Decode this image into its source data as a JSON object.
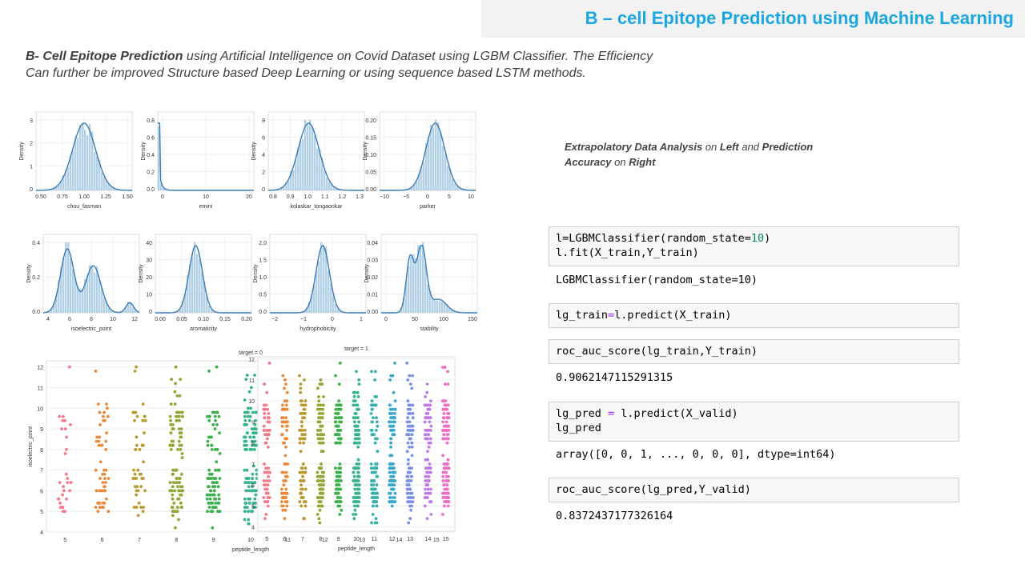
{
  "header": {
    "title": "B – cell Epitope Prediction using Machine Learning"
  },
  "intro": {
    "bold": "B- Cell Epitope Prediction",
    "rest": "  using Artificial Intelligence on Covid Dataset using LGBM Classifier. The Efficiency",
    "line2": "Can further be improved Structure based Deep Learning or using sequence based LSTM methods."
  },
  "note": {
    "b1": "Extrapolatory Data Analysis",
    "t1": " on ",
    "b2": "Left",
    "t2": " and ",
    "b3": "Prediction Accuracy",
    "t3": " on ",
    "b4": "Right"
  },
  "code": {
    "c1_a": "l",
    "c1_b": "=LGBMClassifier(random_state=",
    "c1_num": "10",
    "c1_c": ")",
    "c1_line2": "l.fit(X_train,Y_train)",
    "o1": "LGBMClassifier(random_state=10)",
    "c2_a": "lg_train",
    "c2_op": "=",
    "c2_b": "l.predict(X_train)",
    "c3": "roc_auc_score(lg_train,Y_train)",
    "o3": "0.9062147115291315",
    "c4_a": "lg_pred ",
    "c4_op": "=",
    "c4_b": " l.predict(X_valid)",
    "c4_line2": "lg_pred",
    "o4": "array([0, 0, 1, ..., 0, 0, 0], dtype=int64)",
    "c5": "roc_auc_score(lg_pred,Y_valid)",
    "o5": "0.8372437177326164"
  },
  "colors": {
    "kde": "#3b7bb5",
    "hist": "#9fc5e0"
  },
  "chart_data": [
    {
      "type": "area",
      "xlabel": "chou_fasman",
      "ylabel": "Density",
      "xticks": [
        "0.50",
        "0.75",
        "1.00",
        "1.25",
        "1.50"
      ],
      "yticks": [
        "0",
        "1",
        "2",
        "3"
      ],
      "shape": {
        "kind": "normal",
        "mu": 0.5,
        "s": 0.12
      }
    },
    {
      "type": "area",
      "xlabel": "emini",
      "ylabel": "Density",
      "xticks": [
        "0",
        "10",
        "20"
      ],
      "yticks": [
        "0.0",
        "0.2",
        "0.4",
        "0.6",
        "0.8"
      ],
      "shape": {
        "kind": "spike"
      }
    },
    {
      "type": "area",
      "xlabel": "kolaskar_tongaonkar",
      "ylabel": "Density",
      "xticks": [
        "0.8",
        "0.9",
        "1.0",
        "1.1",
        "1.2",
        "1.3"
      ],
      "yticks": [
        "0",
        "2",
        "4",
        "6",
        "8"
      ],
      "shape": {
        "kind": "normal",
        "mu": 0.42,
        "s": 0.11
      }
    },
    {
      "type": "area",
      "xlabel": "parker",
      "ylabel": "Density",
      "xticks": [
        "−10",
        "−5",
        "0",
        "5",
        "10"
      ],
      "yticks": [
        "0.00",
        "0.05",
        "0.10",
        "0.15",
        "0.20"
      ],
      "shape": {
        "kind": "normal",
        "mu": 0.58,
        "s": 0.1
      }
    },
    {
      "type": "area",
      "xlabel": "isoelectric_point",
      "ylabel": "Density",
      "xticks": [
        "4",
        "6",
        "8",
        "10",
        "12"
      ],
      "yticks": [
        "0.0",
        "0.2",
        "0.4"
      ],
      "shape": {
        "kind": "bimodal"
      }
    },
    {
      "type": "area",
      "xlabel": "aromaticity",
      "ylabel": "Density",
      "xticks": [
        "0.00",
        "0.05",
        "0.10",
        "0.15",
        "0.20"
      ],
      "yticks": [
        "0",
        "10",
        "20",
        "30",
        "40"
      ],
      "shape": {
        "kind": "normal",
        "mu": 0.42,
        "s": 0.07
      }
    },
    {
      "type": "area",
      "xlabel": "hydrophobicity",
      "ylabel": "Density",
      "xticks": [
        "−2",
        "−1",
        "0",
        "1"
      ],
      "yticks": [
        "0.0",
        "0.5",
        "1.0",
        "1.5",
        "2.0"
      ],
      "shape": {
        "kind": "normal",
        "mu": 0.55,
        "s": 0.07
      }
    },
    {
      "type": "area",
      "xlabel": "stability",
      "ylabel": "Density",
      "xticks": [
        "0",
        "50",
        "100",
        "150"
      ],
      "yticks": [
        "0.00",
        "0.01",
        "0.02",
        "0.03",
        "0.04"
      ],
      "shape": {
        "kind": "bimodal2"
      }
    },
    {
      "type": "scatter",
      "title": "target = 0",
      "xlabel": "peptide_length",
      "ylabel": "isoelectric_point",
      "x": [
        5,
        6,
        7,
        8,
        9,
        10,
        11,
        12,
        13,
        14,
        15
      ],
      "yticks": [
        "4",
        "5",
        "6",
        "7",
        "8",
        "9",
        "10",
        "11",
        "12"
      ],
      "ylim": [
        4,
        12.3
      ],
      "density": [
        0.25,
        0.45,
        0.4,
        0.9,
        0.75,
        1.0,
        0.45,
        0.75,
        0.55,
        0.6,
        1.2
      ]
    },
    {
      "type": "scatter",
      "title": "target = 1",
      "xlabel": "peptide_length",
      "ylabel": "",
      "x": [
        5,
        6,
        7,
        8,
        9,
        10,
        11,
        12,
        13,
        14,
        15
      ],
      "yticks": [
        "4",
        "5",
        "6",
        "7",
        "8",
        "9",
        "10",
        "11",
        "12"
      ],
      "ylim": [
        3.8,
        12.1
      ],
      "density": [
        0.6,
        0.7,
        0.7,
        1.0,
        0.9,
        1.0,
        0.9,
        1.0,
        0.8,
        0.8,
        1.1
      ]
    }
  ]
}
